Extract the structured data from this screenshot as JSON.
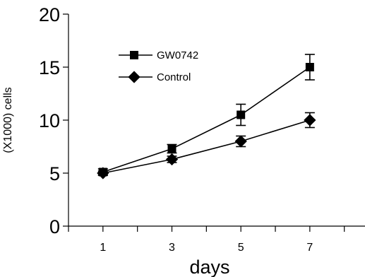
{
  "chart_data": {
    "type": "line",
    "xlabel": "days",
    "ylabel": "(X1000) cells",
    "x": [
      1,
      3,
      5,
      7
    ],
    "xticks": [
      "1",
      "3",
      "5",
      "7"
    ],
    "ylim": [
      0,
      20
    ],
    "yticks": [
      "0",
      "5",
      "10",
      "15",
      "20"
    ],
    "grid": false,
    "legend_position": "top-left",
    "series": [
      {
        "name": "GW0742",
        "marker": "square",
        "values": [
          5.1,
          7.3,
          10.5,
          15.0
        ],
        "errors": [
          0.3,
          0.4,
          1.0,
          1.2
        ]
      },
      {
        "name": "Control",
        "marker": "diamond",
        "values": [
          5.0,
          6.3,
          8.0,
          10.0
        ],
        "errors": [
          0.2,
          0.3,
          0.5,
          0.7
        ]
      }
    ]
  }
}
